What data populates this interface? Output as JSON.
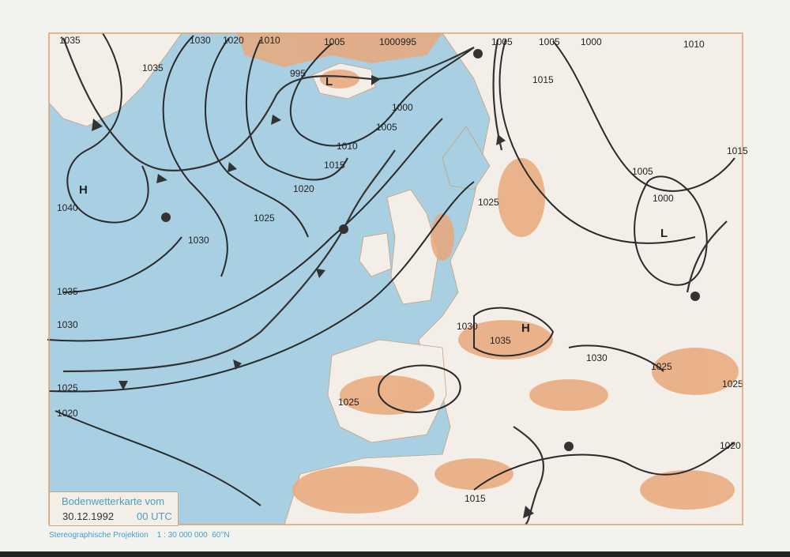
{
  "legend": {
    "title": "Bodenwetterkarte vom",
    "date": "30.12.1992",
    "time": "00 UTC"
  },
  "footer": {
    "projection": "Stereographische Projektion",
    "scale": "1 : 30 000 000",
    "latitude": "60°N"
  },
  "isobar_labels": [
    "1035",
    "1030",
    "1020",
    "1010",
    "1005",
    "1000",
    "995",
    "1005",
    "1005",
    "1000",
    "1010",
    "1035",
    "995",
    "1015",
    "1000",
    "1005",
    "1010",
    "1015",
    "1020",
    "1040",
    "1025",
    "1030",
    "1035",
    "1030",
    "1025",
    "1020",
    "1015",
    "1005",
    "1000",
    "1025",
    "1030",
    "1035",
    "1030",
    "1025",
    "1025",
    "1025",
    "1020",
    "1015"
  ],
  "pressure_centers": [
    "H",
    "H",
    "L",
    "L"
  ],
  "colors": {
    "ocean": "#a9d0e2",
    "land": "#f3efe8",
    "highland": "#e9a87a",
    "isobar": "#2a2a2a",
    "accent_text": "#4a9cc4"
  }
}
